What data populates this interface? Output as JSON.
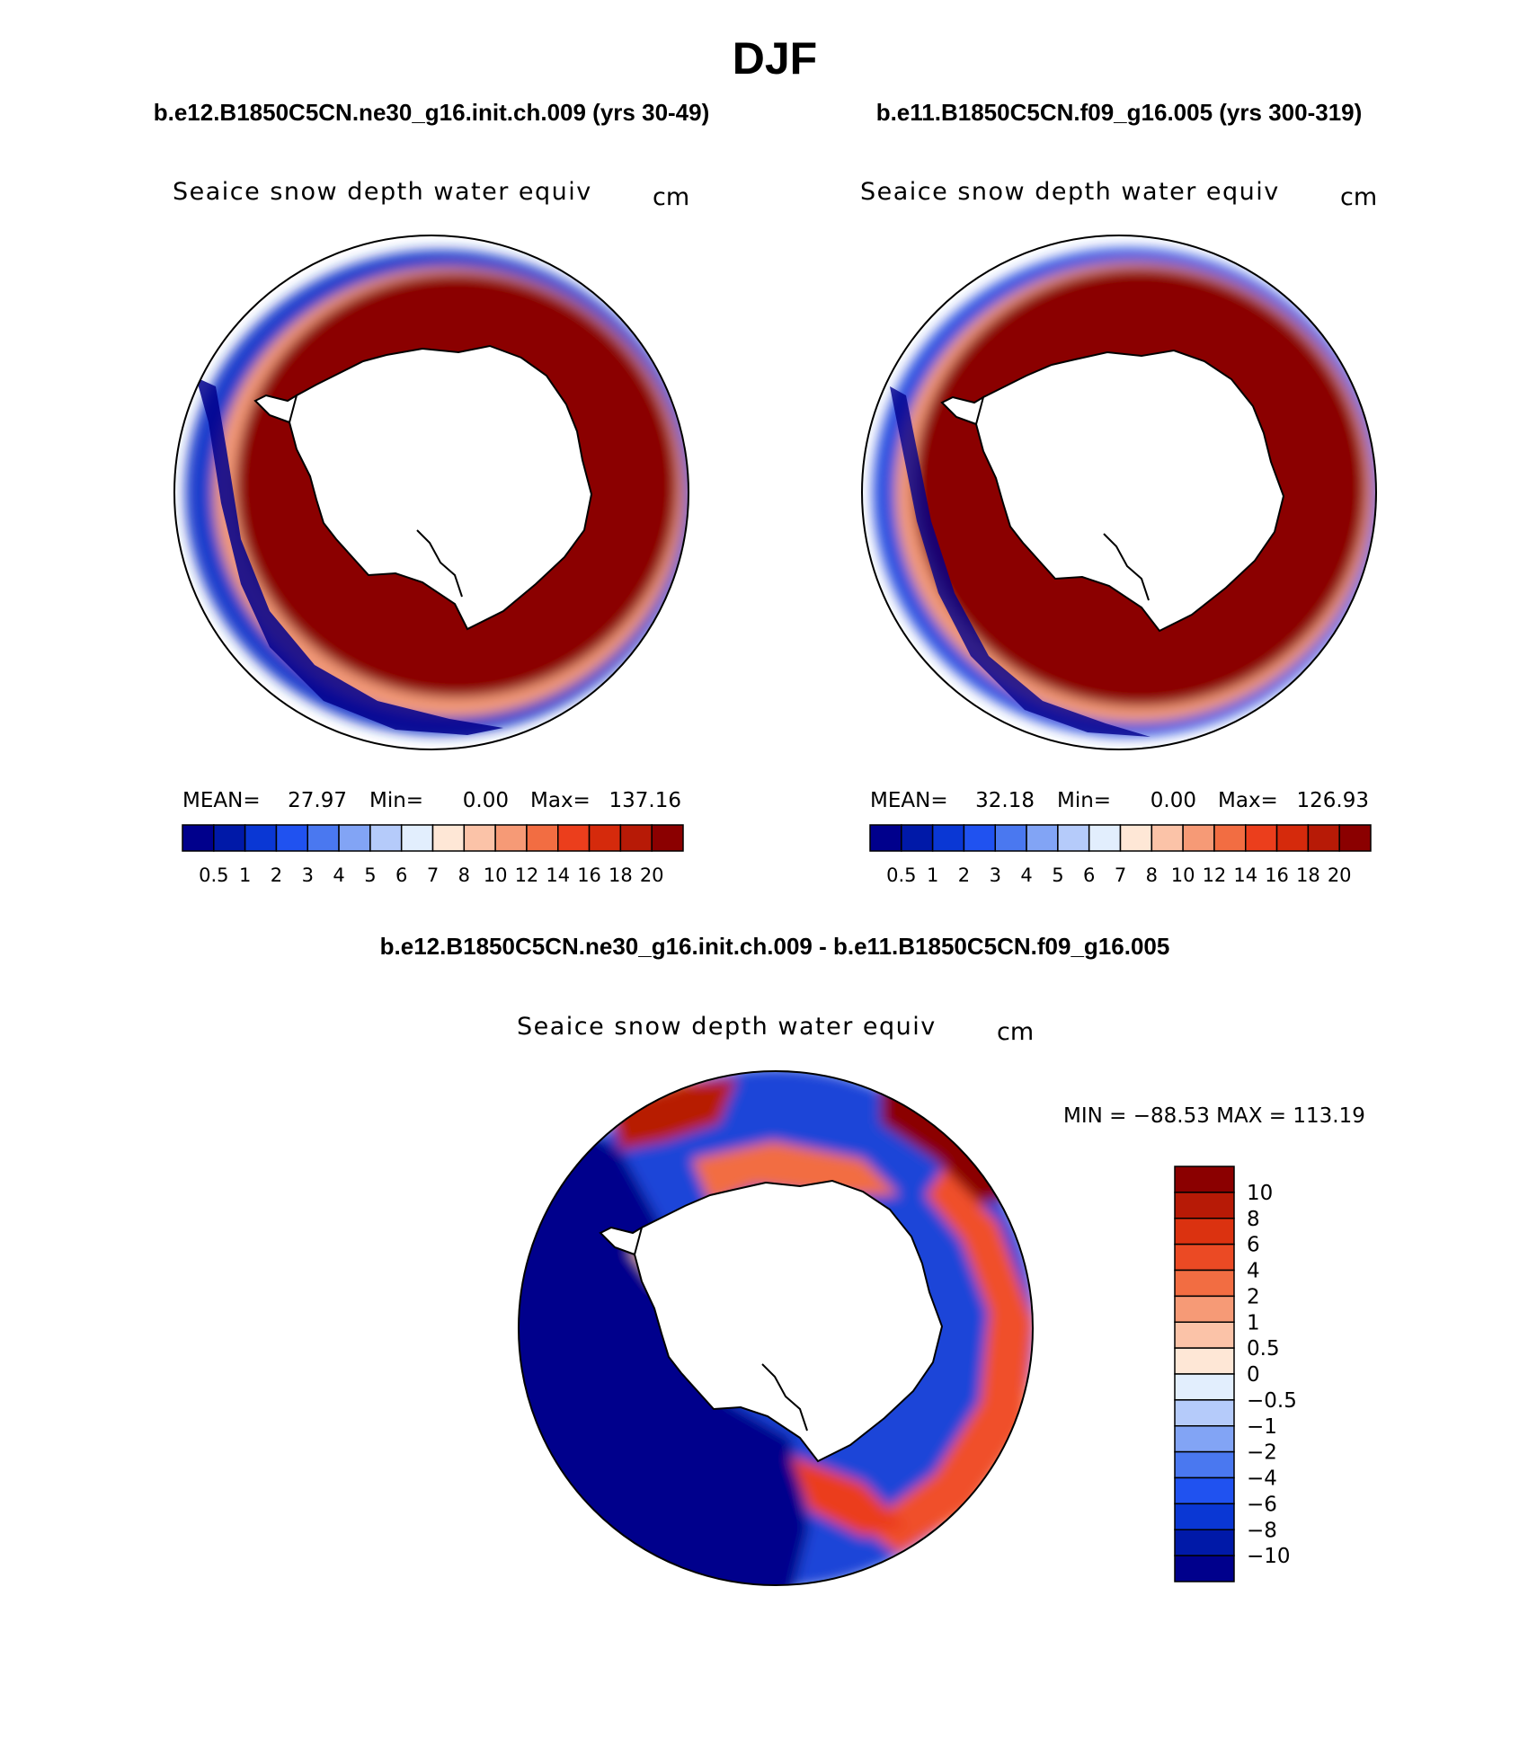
{
  "chart_data": {
    "type": "heatmap",
    "title": "DJF",
    "panels": [
      {
        "case_title": "b.e12.B1850C5CN.ne30_g16.init.ch.009 (yrs 30-49)",
        "variable": "Seaice snow depth water equiv",
        "units": "cm",
        "stats": {
          "mean_label": "MEAN=",
          "mean": "27.97",
          "min_label": "Min=",
          "min": "0.00",
          "max_label": "Max=",
          "max": "137.16"
        }
      },
      {
        "case_title": "b.e11.B1850C5CN.f09_g16.005 (yrs 300-319)",
        "variable": "Seaice snow depth water equiv",
        "units": "cm",
        "stats": {
          "mean_label": "MEAN=",
          "mean": "32.18",
          "min_label": "Min=",
          "min": "0.00",
          "max_label": "Max=",
          "max": "126.93"
        }
      },
      {
        "case_title": "b.e12.B1850C5CN.ne30_g16.init.ch.009 - b.e11.B1850C5CN.f09_g16.005",
        "variable": "Seaice snow depth water equiv",
        "units": "cm",
        "minmax_label": "MIN = −88.53 MAX = 113.19"
      }
    ],
    "abs_colorbar": {
      "labels": [
        "0.5",
        "1",
        "2",
        "3",
        "4",
        "5",
        "6",
        "7",
        "8",
        "10",
        "12",
        "14",
        "16",
        "18",
        "20"
      ],
      "colors": [
        "#00008c",
        "#0019a8",
        "#0a37d4",
        "#2052f0",
        "#4a78f0",
        "#82a4f5",
        "#b5cbfa",
        "#e2eefd",
        "#fee7d6",
        "#fbc3a8",
        "#f69a76",
        "#f26d42",
        "#eb3e1c",
        "#d52a0c",
        "#b71a06",
        "#8b0000"
      ]
    },
    "diff_colorbar": {
      "labels": [
        "10",
        "8",
        "6",
        "4",
        "2",
        "1",
        "0.5",
        "0",
        "−0.5",
        "−1",
        "−2",
        "−4",
        "−6",
        "−8",
        "−10"
      ],
      "colors": [
        "#8b0000",
        "#b71a06",
        "#db3210",
        "#eb4a24",
        "#f26d42",
        "#f69a76",
        "#fbc3a8",
        "#fee7d6",
        "#e2eefd",
        "#b5cbfa",
        "#82a4f5",
        "#4a78f0",
        "#2052f0",
        "#0a37d4",
        "#0019a8",
        "#00008c"
      ]
    }
  }
}
